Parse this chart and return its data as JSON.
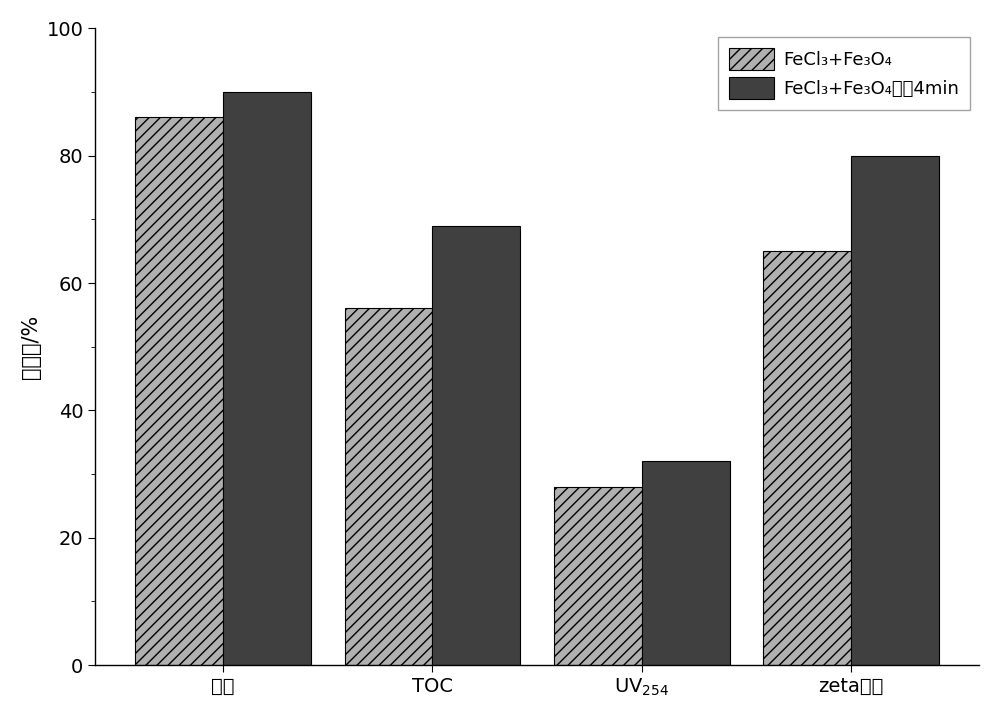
{
  "categories": [
    "浊度",
    "TOC",
    "UV$_{254}$",
    "zeta电位"
  ],
  "series1_values": [
    86,
    56,
    28,
    65
  ],
  "series2_values": [
    90,
    69,
    32,
    80
  ],
  "series1_label": "FeCl₃+Fe₃O₄",
  "series2_label": "FeCl₃+Fe₃O₄磁剆4min",
  "series1_color": "#b0b0b0",
  "series2_color": "#404040",
  "hatch1": "///",
  "hatch2": "",
  "ylabel": "百分比/%",
  "ylim": [
    0,
    100
  ],
  "yticks": [
    0,
    20,
    40,
    60,
    80,
    100
  ],
  "bar_width": 0.42,
  "figsize": [
    10.0,
    7.19
  ],
  "dpi": 100,
  "axis_fontsize": 15,
  "tick_fontsize": 14,
  "legend_fontsize": 13,
  "bg_color": "#ffffff",
  "plot_bg_color": "#ffffff"
}
